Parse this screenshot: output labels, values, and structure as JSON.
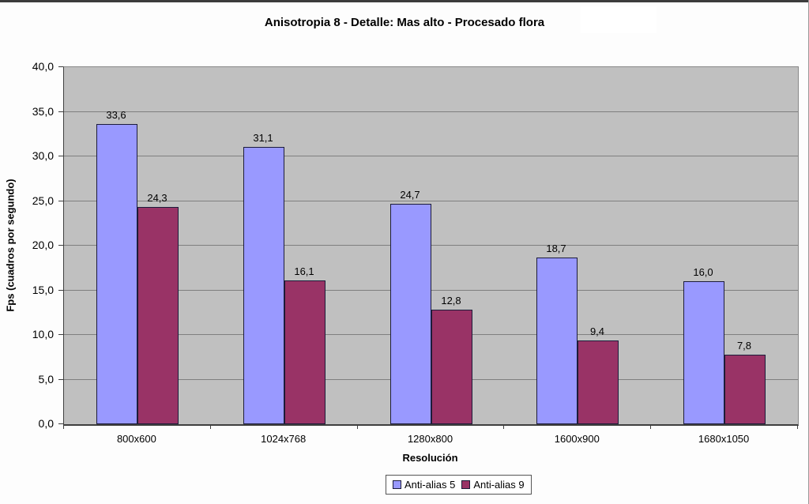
{
  "chart_data": {
    "type": "bar",
    "title": "Anisotropia 8 - Detalle: Mas alto - Procesado flora",
    "xlabel": "Resolución",
    "ylabel": "Fps (cuadros por segundo)",
    "categories": [
      "800x600",
      "1024x768",
      "1280x800",
      "1600x900",
      "1680x1050"
    ],
    "series": [
      {
        "name": "Anti-alias 5",
        "color": "#9999ff",
        "values": [
          33.6,
          31.1,
          24.7,
          18.7,
          16.0
        ]
      },
      {
        "name": "Anti-alias 9",
        "color": "#993366",
        "values": [
          24.3,
          16.1,
          12.8,
          9.4,
          7.8
        ]
      }
    ],
    "ylim": [
      0,
      40
    ],
    "ytick_step": 5,
    "decimal_separator": ",",
    "grid": "horizontal",
    "legend_position": "bottom",
    "plot_background": "#c0c0c0",
    "gridline_color": "#7f7f7f"
  }
}
